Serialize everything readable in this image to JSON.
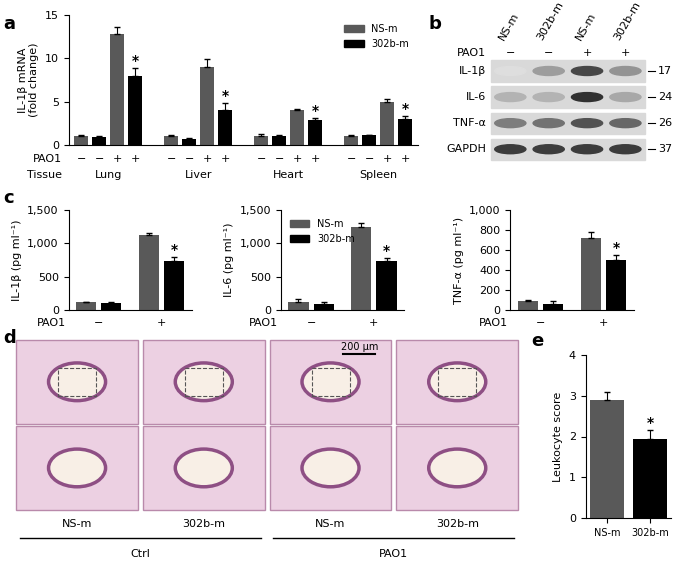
{
  "chart_data": [
    {
      "panel": "a",
      "type": "bar",
      "ylabel": "IL-1β mRNA\n(fold change)",
      "ylim": [
        0,
        15
      ],
      "yticks": [
        0,
        5,
        10,
        15
      ],
      "legend": "upper right",
      "group_label": "Tissue",
      "groups": [
        "Lung",
        "Liver",
        "Heart",
        "Spleen"
      ],
      "condition_label": "PAO1",
      "conditions": [
        "−",
        "+"
      ],
      "series": [
        {
          "name": "NS-m",
          "color": "#595959",
          "values": [
            [
              1.0,
              12.8
            ],
            [
              1.0,
              9.0
            ],
            [
              1.0,
              4.0
            ],
            [
              1.0,
              5.0
            ]
          ],
          "errors": [
            [
              0.1,
              0.8
            ],
            [
              0.1,
              0.9
            ],
            [
              0.3,
              0.15
            ],
            [
              0.1,
              0.35
            ]
          ],
          "marks": [
            [
              null,
              null
            ],
            [
              null,
              null
            ],
            [
              null,
              null
            ],
            [
              null,
              null
            ]
          ]
        },
        {
          "name": "302b-m",
          "color": "#000000",
          "values": [
            [
              0.9,
              8.0
            ],
            [
              0.7,
              4.0
            ],
            [
              1.0,
              2.9
            ],
            [
              1.1,
              3.0
            ]
          ],
          "errors": [
            [
              0.1,
              0.9
            ],
            [
              0.1,
              0.9
            ],
            [
              0.2,
              0.2
            ],
            [
              0.1,
              0.3
            ]
          ],
          "marks": [
            [
              null,
              "*"
            ],
            [
              null,
              "*"
            ],
            [
              null,
              "*"
            ],
            [
              null,
              "*"
            ]
          ]
        }
      ]
    },
    {
      "panel": "c",
      "type": "bar",
      "ylabel": "IL-1β (pg ml⁻¹)",
      "ylim": [
        0,
        1500
      ],
      "yticks": [
        0,
        500,
        {
          "value": 1000,
          "label": "1,000"
        },
        {
          "value": 1500,
          "label": "1,500"
        }
      ],
      "condition_label": "PAO1",
      "categories": [
        "−",
        "+"
      ],
      "series": [
        {
          "name": "NS-m",
          "color": "#595959",
          "values": [
            120,
            1120
          ],
          "errors": [
            10,
            30
          ],
          "marks": [
            null,
            null
          ]
        },
        {
          "name": "302b-m",
          "color": "#000000",
          "values": [
            110,
            730
          ],
          "errors": [
            10,
            70
          ],
          "marks": [
            null,
            "*"
          ]
        }
      ]
    },
    {
      "type": "bar",
      "ylabel": "IL-6 (pg ml⁻¹)",
      "legend": "upper left",
      "ylim": [
        0,
        1500
      ],
      "yticks": [
        0,
        500,
        {
          "value": 1000,
          "label": "1,000"
        },
        {
          "value": 1500,
          "label": "1,500"
        }
      ],
      "condition_label": "PAO1",
      "categories": [
        "−",
        "+"
      ],
      "series": [
        {
          "name": "NS-m",
          "color": "#595959",
          "values": [
            130,
            1250
          ],
          "errors": [
            40,
            50
          ],
          "marks": [
            null,
            null
          ]
        },
        {
          "name": "302b-m",
          "color": "#000000",
          "values": [
            100,
            730
          ],
          "errors": [
            20,
            50
          ],
          "marks": [
            null,
            "*"
          ]
        }
      ]
    },
    {
      "type": "bar",
      "ylabel": "TNF-α (pg ml⁻¹)",
      "ylim": [
        0,
        1000
      ],
      "yticks": [
        0,
        200,
        400,
        600,
        800,
        {
          "value": 1000,
          "label": "1,000"
        }
      ],
      "condition_label": "PAO1",
      "categories": [
        "−",
        "+"
      ],
      "series": [
        {
          "name": "NS-m",
          "color": "#595959",
          "values": [
            90,
            720
          ],
          "errors": [
            10,
            60
          ],
          "marks": [
            null,
            null
          ]
        },
        {
          "name": "302b-m",
          "color": "#000000",
          "values": [
            60,
            500
          ],
          "errors": [
            30,
            50
          ],
          "marks": [
            null,
            "*"
          ]
        }
      ]
    },
    {
      "panel": "e",
      "type": "bar",
      "ylabel": "Leukocyte score",
      "ylim": [
        0,
        4
      ],
      "yticks": [
        0,
        1,
        2,
        3,
        4
      ],
      "categories": [
        "NS-m",
        "302b-m"
      ],
      "values": [
        2.9,
        1.95
      ],
      "errors": [
        0.2,
        0.2
      ],
      "colors": [
        "#595959",
        "#000000"
      ],
      "marks": [
        null,
        "*"
      ]
    }
  ],
  "blot": {
    "panel": "b",
    "lanes": [
      "NS-m",
      "302b-m",
      "NS-m",
      "302b-m"
    ],
    "condition_label": "PAO1",
    "conditions": [
      "−",
      "−",
      "+",
      "+"
    ],
    "rows": [
      {
        "name": "IL-1β",
        "size": 17,
        "intensities": [
          0.15,
          0.45,
          0.85,
          0.5
        ]
      },
      {
        "name": "IL-6",
        "size": 24,
        "intensities": [
          0.35,
          0.35,
          0.95,
          0.4
        ]
      },
      {
        "name": "TNF-α",
        "size": 26,
        "intensities": [
          0.6,
          0.65,
          0.8,
          0.7
        ]
      },
      {
        "name": "GAPDH",
        "size": 37,
        "intensities": [
          0.9,
          0.9,
          0.9,
          0.9
        ]
      }
    ]
  },
  "histology": {
    "panel": "d",
    "scale_bar": "200 µm",
    "groups": [
      {
        "label": "Ctrl",
        "columns": [
          "NS-m",
          "302b-m"
        ]
      },
      {
        "label": "PAO1",
        "columns": [
          "NS-m",
          "302b-m"
        ]
      }
    ]
  }
}
